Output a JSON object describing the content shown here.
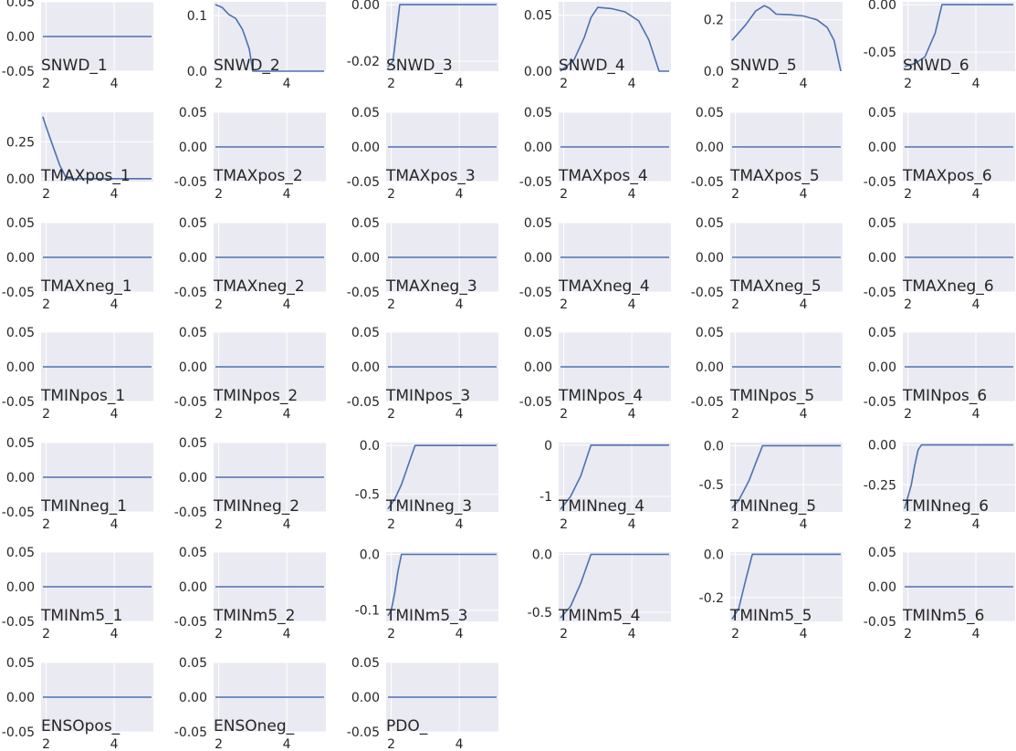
{
  "style": {
    "plot_bg": "#eaeaf2",
    "grid_color": "#ffffff",
    "line_color": "#4c72b0",
    "text_color": "#262626"
  },
  "chart_data": [
    {
      "type": "line",
      "label": "SNWD_1",
      "x": [
        1.9,
        5.1
      ],
      "y": [
        0,
        0
      ],
      "ylim": [
        -0.05,
        0.05
      ],
      "yticks": [
        "0.05",
        "0.00",
        "-0.05"
      ],
      "xticks": [
        "2",
        "4"
      ]
    },
    {
      "type": "line",
      "label": "SNWD_2",
      "x": [
        1.9,
        2.1,
        2.3,
        2.5,
        2.7,
        2.9,
        3.0,
        3.2,
        4.0,
        5.1
      ],
      "y": [
        0.12,
        0.115,
        0.102,
        0.095,
        0.075,
        0.04,
        0.0,
        0.0,
        0.0,
        0.0
      ],
      "ylim": [
        0,
        0.125
      ],
      "yticks": [
        "0.1",
        "0.0"
      ],
      "xticks": [
        "2",
        "4"
      ]
    },
    {
      "type": "line",
      "label": "SNWD_3",
      "x": [
        1.9,
        2.05,
        2.15,
        2.25,
        3.0,
        4.0,
        5.1
      ],
      "y": [
        -0.022,
        -0.02,
        -0.01,
        0.0,
        0.0,
        0.0,
        0.0
      ],
      "ylim": [
        -0.0235,
        0.001
      ],
      "yticks": [
        "0.00",
        "-0.02"
      ],
      "xticks": [
        "2",
        "4"
      ]
    },
    {
      "type": "line",
      "label": "SNWD_4",
      "x": [
        1.9,
        2.3,
        2.6,
        2.8,
        3.0,
        3.4,
        3.8,
        4.2,
        4.5,
        4.8,
        5.1
      ],
      "y": [
        0,
        0.01,
        0.03,
        0.048,
        0.057,
        0.056,
        0.053,
        0.045,
        0.028,
        0,
        0
      ],
      "ylim": [
        0,
        0.062
      ],
      "yticks": [
        "0.05",
        "0.00"
      ],
      "xticks": [
        "2",
        "4"
      ]
    },
    {
      "type": "line",
      "label": "SNWD_5",
      "x": [
        1.9,
        2.3,
        2.6,
        2.85,
        3.0,
        3.2,
        3.6,
        4.0,
        4.4,
        4.7,
        4.9,
        5.1
      ],
      "y": [
        0.12,
        0.18,
        0.235,
        0.255,
        0.245,
        0.222,
        0.22,
        0.215,
        0.2,
        0.17,
        0.12,
        0.0
      ],
      "ylim": [
        0,
        0.27
      ],
      "yticks": [
        "0.2",
        "0.0"
      ],
      "xticks": [
        "2",
        "4"
      ]
    },
    {
      "type": "line",
      "label": "SNWD_6",
      "x": [
        1.9,
        2.2,
        2.5,
        2.8,
        3.0,
        4.0,
        5.1
      ],
      "y": [
        -0.065,
        -0.062,
        -0.055,
        -0.03,
        0.0,
        0.0,
        0.0
      ],
      "ylim": [
        -0.07,
        0.003
      ],
      "yticks": [
        "0.00",
        "-0.05"
      ],
      "xticks": [
        "2",
        "4"
      ]
    },
    {
      "type": "line",
      "label": "TMAXpos_1",
      "x": [
        1.9,
        2.0,
        2.2,
        2.4,
        2.6,
        3.0,
        4.0,
        5.1
      ],
      "y": [
        0.42,
        0.35,
        0.22,
        0.09,
        0.0,
        0.0,
        0.0,
        0.0
      ],
      "ylim": [
        -0.02,
        0.45
      ],
      "yticks": [
        "0.25",
        "0.00"
      ],
      "xticks": [
        "2",
        "4"
      ]
    },
    {
      "type": "line",
      "label": "TMAXpos_2",
      "x": [
        1.9,
        5.1
      ],
      "y": [
        0,
        0
      ],
      "ylim": [
        -0.05,
        0.05
      ],
      "yticks": [
        "0.05",
        "0.00",
        "-0.05"
      ],
      "xticks": [
        "2",
        "4"
      ]
    },
    {
      "type": "line",
      "label": "TMAXpos_3",
      "x": [
        1.9,
        5.1
      ],
      "y": [
        0,
        0
      ],
      "ylim": [
        -0.05,
        0.05
      ],
      "yticks": [
        "0.05",
        "0.00",
        "-0.05"
      ],
      "xticks": [
        "2",
        "4"
      ]
    },
    {
      "type": "line",
      "label": "TMAXpos_4",
      "x": [
        1.9,
        5.1
      ],
      "y": [
        0,
        0
      ],
      "ylim": [
        -0.05,
        0.05
      ],
      "yticks": [
        "0.05",
        "0.00",
        "-0.05"
      ],
      "xticks": [
        "2",
        "4"
      ]
    },
    {
      "type": "line",
      "label": "TMAXpos_5",
      "x": [
        1.9,
        5.1
      ],
      "y": [
        0,
        0
      ],
      "ylim": [
        -0.05,
        0.05
      ],
      "yticks": [
        "0.05",
        "0.00",
        "-0.05"
      ],
      "xticks": [
        "2",
        "4"
      ]
    },
    {
      "type": "line",
      "label": "TMAXpos_6",
      "x": [
        1.9,
        5.1
      ],
      "y": [
        0,
        0
      ],
      "ylim": [
        -0.05,
        0.05
      ],
      "yticks": [
        "0.05",
        "0.00",
        "-0.05"
      ],
      "xticks": [
        "2",
        "4"
      ]
    },
    {
      "type": "line",
      "label": "TMAXneg_1",
      "x": [
        1.9,
        5.1
      ],
      "y": [
        0,
        0
      ],
      "ylim": [
        -0.05,
        0.05
      ],
      "yticks": [
        "0.05",
        "0.00",
        "-0.05"
      ],
      "xticks": [
        "2",
        "4"
      ]
    },
    {
      "type": "line",
      "label": "TMAXneg_2",
      "x": [
        1.9,
        5.1
      ],
      "y": [
        0,
        0
      ],
      "ylim": [
        -0.05,
        0.05
      ],
      "yticks": [
        "0.05",
        "0.00",
        "-0.05"
      ],
      "xticks": [
        "2",
        "4"
      ]
    },
    {
      "type": "line",
      "label": "TMAXneg_3",
      "x": [
        1.9,
        5.1
      ],
      "y": [
        0,
        0
      ],
      "ylim": [
        -0.05,
        0.05
      ],
      "yticks": [
        "0.05",
        "0.00",
        "-0.05"
      ],
      "xticks": [
        "2",
        "4"
      ]
    },
    {
      "type": "line",
      "label": "TMAXneg_4",
      "x": [
        1.9,
        5.1
      ],
      "y": [
        0,
        0
      ],
      "ylim": [
        -0.05,
        0.05
      ],
      "yticks": [
        "0.05",
        "0.00",
        "-0.05"
      ],
      "xticks": [
        "2",
        "4"
      ]
    },
    {
      "type": "line",
      "label": "TMAXneg_5",
      "x": [
        1.9,
        5.1
      ],
      "y": [
        0,
        0
      ],
      "ylim": [
        -0.05,
        0.05
      ],
      "yticks": [
        "0.05",
        "0.00",
        "-0.05"
      ],
      "xticks": [
        "2",
        "4"
      ]
    },
    {
      "type": "line",
      "label": "TMAXneg_6",
      "x": [
        1.9,
        5.1
      ],
      "y": [
        0,
        0
      ],
      "ylim": [
        -0.05,
        0.05
      ],
      "yticks": [
        "0.05",
        "0.00",
        "-0.05"
      ],
      "xticks": [
        "2",
        "4"
      ]
    },
    {
      "type": "line",
      "label": "TMINpos_1",
      "x": [
        1.9,
        5.1
      ],
      "y": [
        0,
        0
      ],
      "ylim": [
        -0.05,
        0.05
      ],
      "yticks": [
        "0.05",
        "0.00",
        "-0.05"
      ],
      "xticks": [
        "2",
        "4"
      ]
    },
    {
      "type": "line",
      "label": "TMINpos_2",
      "x": [
        1.9,
        5.1
      ],
      "y": [
        0,
        0
      ],
      "ylim": [
        -0.05,
        0.05
      ],
      "yticks": [
        "0.05",
        "0.00",
        "-0.05"
      ],
      "xticks": [
        "2",
        "4"
      ]
    },
    {
      "type": "line",
      "label": "TMINpos_3",
      "x": [
        1.9,
        5.1
      ],
      "y": [
        0,
        0
      ],
      "ylim": [
        -0.05,
        0.05
      ],
      "yticks": [
        "0.05",
        "0.00",
        "-0.05"
      ],
      "xticks": [
        "2",
        "4"
      ]
    },
    {
      "type": "line",
      "label": "TMINpos_4",
      "x": [
        1.9,
        5.1
      ],
      "y": [
        0,
        0
      ],
      "ylim": [
        -0.05,
        0.05
      ],
      "yticks": [
        "0.05",
        "0.00",
        "-0.05"
      ],
      "xticks": [
        "2",
        "4"
      ]
    },
    {
      "type": "line",
      "label": "TMINpos_5",
      "x": [
        1.9,
        5.1
      ],
      "y": [
        0,
        0
      ],
      "ylim": [
        -0.05,
        0.05
      ],
      "yticks": [
        "0.05",
        "0.00",
        "-0.05"
      ],
      "xticks": [
        "2",
        "4"
      ]
    },
    {
      "type": "line",
      "label": "TMINpos_6",
      "x": [
        1.9,
        5.1
      ],
      "y": [
        0,
        0
      ],
      "ylim": [
        -0.05,
        0.05
      ],
      "yticks": [
        "0.05",
        "0.00",
        "-0.05"
      ],
      "xticks": [
        "2",
        "4"
      ]
    },
    {
      "type": "line",
      "label": "TMINneg_1",
      "x": [
        1.9,
        5.1
      ],
      "y": [
        0,
        0
      ],
      "ylim": [
        -0.05,
        0.05
      ],
      "yticks": [
        "0.05",
        "0.00",
        "-0.05"
      ],
      "xticks": [
        "2",
        "4"
      ]
    },
    {
      "type": "line",
      "label": "TMINneg_2",
      "x": [
        1.9,
        5.1
      ],
      "y": [
        0,
        0
      ],
      "ylim": [
        -0.05,
        0.05
      ],
      "yticks": [
        "0.05",
        "0.00",
        "-0.05"
      ],
      "xticks": [
        "2",
        "4"
      ]
    },
    {
      "type": "line",
      "label": "TMINneg_3",
      "x": [
        1.9,
        2.1,
        2.3,
        2.5,
        2.7,
        3.0,
        4.0,
        5.1
      ],
      "y": [
        -0.65,
        -0.55,
        -0.4,
        -0.2,
        0.0,
        0.0,
        0.0,
        0.0
      ],
      "ylim": [
        -0.68,
        0.03
      ],
      "yticks": [
        "0.0",
        "-0.5"
      ],
      "xticks": [
        "2",
        "4"
      ]
    },
    {
      "type": "line",
      "label": "TMINneg_4",
      "x": [
        1.9,
        2.2,
        2.5,
        2.8,
        3.0,
        4.0,
        5.1
      ],
      "y": [
        -1.25,
        -1.0,
        -0.6,
        0.0,
        0.0,
        0.0,
        0.0
      ],
      "ylim": [
        -1.3,
        0.05
      ],
      "yticks": [
        "0",
        "-1"
      ],
      "xticks": [
        "2",
        "4"
      ]
    },
    {
      "type": "line",
      "label": "TMINneg_5",
      "x": [
        1.9,
        2.1,
        2.4,
        2.6,
        2.8,
        3.0,
        4.0,
        5.1
      ],
      "y": [
        -0.8,
        -0.7,
        -0.45,
        -0.22,
        0.0,
        0.0,
        0.0,
        0.0
      ],
      "ylim": [
        -0.85,
        0.04
      ],
      "yticks": [
        "0.0",
        "-0.5"
      ],
      "xticks": [
        "2",
        "4"
      ]
    },
    {
      "type": "line",
      "label": "TMINneg_6",
      "x": [
        1.9,
        2.1,
        2.2,
        2.3,
        2.4,
        3.0,
        4.0,
        5.1
      ],
      "y": [
        -0.4,
        -0.25,
        -0.13,
        -0.03,
        0.0,
        0.0,
        0.0,
        0.0
      ],
      "ylim": [
        -0.42,
        0.015
      ],
      "yticks": [
        "0.00",
        "-0.25"
      ],
      "xticks": [
        "2",
        "4"
      ]
    },
    {
      "type": "line",
      "label": "TMINm5_1",
      "x": [
        1.9,
        5.1
      ],
      "y": [
        0,
        0
      ],
      "ylim": [
        -0.05,
        0.05
      ],
      "yticks": [
        "0.05",
        "0.00",
        "-0.05"
      ],
      "xticks": [
        "2",
        "4"
      ]
    },
    {
      "type": "line",
      "label": "TMINm5_2",
      "x": [
        1.9,
        5.1
      ],
      "y": [
        0,
        0
      ],
      "ylim": [
        -0.05,
        0.05
      ],
      "yticks": [
        "0.05",
        "0.00",
        "-0.05"
      ],
      "xticks": [
        "2",
        "4"
      ]
    },
    {
      "type": "line",
      "label": "TMINm5_3",
      "x": [
        1.9,
        2.0,
        2.1,
        2.2,
        2.3,
        3.0,
        4.0,
        5.1
      ],
      "y": [
        -0.11,
        -0.1,
        -0.07,
        -0.03,
        0.0,
        0.0,
        0.0,
        0.0
      ],
      "ylim": [
        -0.12,
        0.004
      ],
      "yticks": [
        "0.0",
        "-0.1"
      ],
      "xticks": [
        "2",
        "4"
      ]
    },
    {
      "type": "line",
      "label": "TMINm5_4",
      "x": [
        1.9,
        2.2,
        2.5,
        2.8,
        3.0,
        4.0,
        5.1
      ],
      "y": [
        -0.55,
        -0.45,
        -0.25,
        0.0,
        0.0,
        0.0,
        0.0
      ],
      "ylim": [
        -0.58,
        0.02
      ],
      "yticks": [
        "0.0",
        "-0.5"
      ],
      "xticks": [
        "2",
        "4"
      ]
    },
    {
      "type": "line",
      "label": "TMINm5_5",
      "x": [
        1.9,
        2.1,
        2.3,
        2.5,
        3.0,
        4.0,
        5.1
      ],
      "y": [
        -0.3,
        -0.25,
        -0.12,
        0.0,
        0.0,
        0.0,
        0.0
      ],
      "ylim": [
        -0.31,
        0.01
      ],
      "yticks": [
        "0.0",
        "-0.2"
      ],
      "xticks": [
        "2",
        "4"
      ]
    },
    {
      "type": "line",
      "label": "TMINm5_6",
      "x": [
        1.9,
        5.1
      ],
      "y": [
        0,
        0
      ],
      "ylim": [
        -0.05,
        0.05
      ],
      "yticks": [
        "0.05",
        "0.00",
        "-0.05"
      ],
      "xticks": [
        "2",
        "4"
      ]
    },
    {
      "type": "line",
      "label": "ENSOpos_",
      "x": [
        1.9,
        5.1
      ],
      "y": [
        0,
        0
      ],
      "ylim": [
        -0.05,
        0.05
      ],
      "yticks": [
        "0.05",
        "0.00",
        "-0.05"
      ],
      "xticks": [
        "2",
        "4"
      ]
    },
    {
      "type": "line",
      "label": "ENSOneg_",
      "x": [
        1.9,
        5.1
      ],
      "y": [
        0,
        0
      ],
      "ylim": [
        -0.05,
        0.05
      ],
      "yticks": [
        "0.05",
        "0.00",
        "-0.05"
      ],
      "xticks": [
        "2",
        "4"
      ]
    },
    {
      "type": "line",
      "label": "PDO_",
      "x": [
        1.9,
        5.1
      ],
      "y": [
        0,
        0
      ],
      "ylim": [
        -0.05,
        0.05
      ],
      "yticks": [
        "0.05",
        "0.00",
        "-0.05"
      ],
      "xticks": [
        "2",
        "4"
      ]
    }
  ]
}
